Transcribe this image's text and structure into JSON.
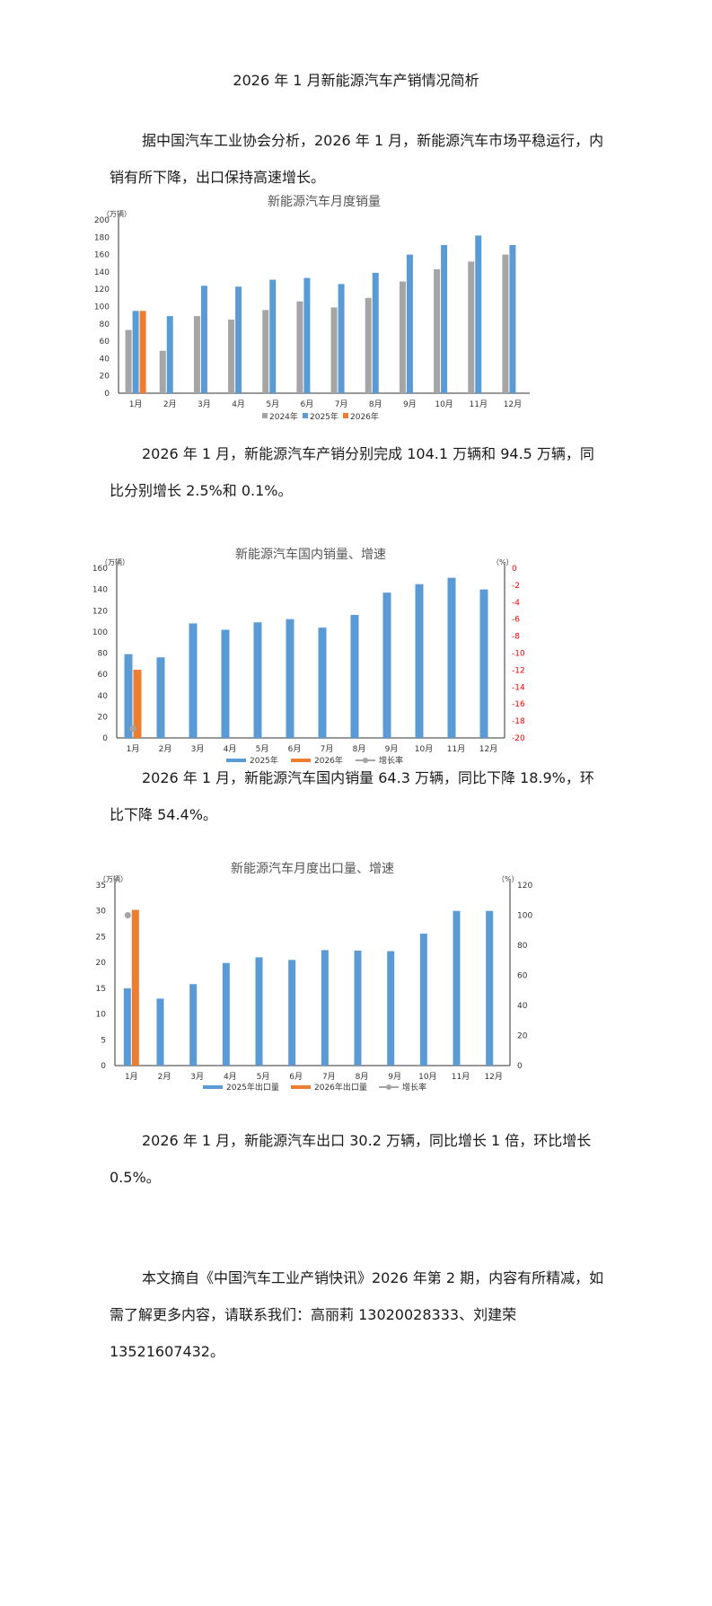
{
  "article": {
    "title": "2026 年 1 月新能源汽车产销情况简析",
    "p1": "据中国汽车工业协会分析，2026 年 1 月，新能源汽车市场平稳运行，内销有所下降，出口保持高速增长。",
    "p2": "2026 年 1 月，新能源汽车产销分别完成 104.1 万辆和 94.5 万辆，同比分别增长 2.5%和 0.1%。",
    "p3": "2026 年 1 月，新能源汽车国内销量 64.3 万辆，同比下降 18.9%，环比下降 54.4%。",
    "p4": "2026 年 1 月，新能源汽车出口 30.2 万辆，同比增长 1 倍，环比增长 0.5%。",
    "p5": "本文摘自《中国汽车工业产销快讯》2026 年第 2 期，内容有所精减，如需了解更多内容，请联系我们：高丽莉 13020028333、刘建荣 13521607432。"
  },
  "colors": {
    "c2024": "#a5a5a5",
    "c2025": "#5b9bd5",
    "c2026": "#ed7d31",
    "rate": "#a5a5a5",
    "red_axis": "#ff0000",
    "text": "#1a1a1a"
  },
  "chart_data": [
    {
      "type": "bar",
      "title": "新能源汽车月度销量",
      "ylabel": "（万辆）",
      "ylim": [
        0,
        200
      ],
      "yticks": [
        0,
        20,
        40,
        60,
        80,
        100,
        120,
        140,
        160,
        180,
        200
      ],
      "categories": [
        "1月",
        "2月",
        "3月",
        "4月",
        "5月",
        "6月",
        "7月",
        "8月",
        "9月",
        "10月",
        "11月",
        "12月"
      ],
      "series": [
        {
          "name": "2024年",
          "color": "#a5a5a5",
          "values": [
            73,
            49,
            89,
            85,
            96,
            106,
            99,
            110,
            129,
            143,
            152,
            160
          ]
        },
        {
          "name": "2025年",
          "color": "#5b9bd5",
          "values": [
            95,
            89,
            124,
            123,
            131,
            133,
            126,
            139,
            160,
            171,
            182,
            171
          ]
        },
        {
          "name": "2026年",
          "color": "#ed7d31",
          "values": [
            95,
            null,
            null,
            null,
            null,
            null,
            null,
            null,
            null,
            null,
            null,
            null
          ]
        }
      ],
      "legend": "bottom"
    },
    {
      "type": "bar",
      "title": "新能源汽车国内销量、增速",
      "ylabel": "（万辆）",
      "y2label": "（%）",
      "ylim": [
        0,
        160
      ],
      "yticks": [
        0,
        20,
        40,
        60,
        80,
        100,
        120,
        140,
        160
      ],
      "y2lim": [
        -20,
        0
      ],
      "y2ticks": [
        0,
        -2,
        -4,
        -6,
        -8,
        -10,
        -12,
        -14,
        -16,
        -18,
        -20
      ],
      "categories": [
        "1月",
        "2月",
        "3月",
        "4月",
        "5月",
        "6月",
        "7月",
        "8月",
        "9月",
        "10月",
        "11月",
        "12月"
      ],
      "series": [
        {
          "name": "2025年",
          "color": "#5b9bd5",
          "values": [
            79,
            76,
            108,
            102,
            109,
            112,
            104,
            116,
            137,
            145,
            151,
            140
          ]
        },
        {
          "name": "2026年",
          "color": "#ed7d31",
          "values": [
            64.3,
            null,
            null,
            null,
            null,
            null,
            null,
            null,
            null,
            null,
            null,
            null
          ]
        },
        {
          "name": "增长率",
          "color": "#a5a5a5",
          "axis": "y2",
          "points": [
            [
              0,
              -18.9
            ]
          ]
        }
      ],
      "legend": "bottom"
    },
    {
      "type": "bar",
      "title": "新能源汽车月度出口量、增速",
      "ylabel": "（万辆）",
      "y2label": "（%）",
      "ylim": [
        0,
        35
      ],
      "yticks": [
        0,
        5,
        10,
        15,
        20,
        25,
        30,
        35
      ],
      "y2lim": [
        0,
        120
      ],
      "y2ticks": [
        0,
        20,
        40,
        60,
        80,
        100,
        120
      ],
      "categories": [
        "1月",
        "2月",
        "3月",
        "4月",
        "5月",
        "6月",
        "7月",
        "8月",
        "9月",
        "10月",
        "11月",
        "12月"
      ],
      "series": [
        {
          "name": "2025年出口量",
          "color": "#5b9bd5",
          "values": [
            15,
            13,
            15.8,
            19.9,
            21,
            20.5,
            22.4,
            22.3,
            22.2,
            25.6,
            30,
            30
          ]
        },
        {
          "name": "2026年出口量",
          "color": "#ed7d31",
          "values": [
            30.2,
            null,
            null,
            null,
            null,
            null,
            null,
            null,
            null,
            null,
            null,
            null
          ]
        },
        {
          "name": "增长率",
          "color": "#a5a5a5",
          "axis": "y2",
          "points": [
            [
              0,
              100
            ]
          ]
        }
      ],
      "legend": "bottom"
    }
  ]
}
